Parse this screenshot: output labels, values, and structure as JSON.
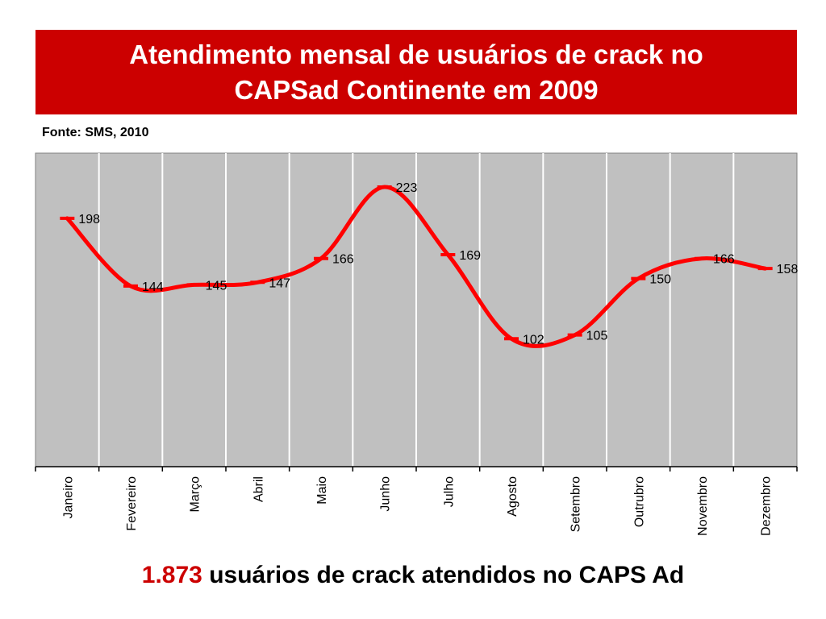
{
  "header": {
    "title": "Atendimento mensal de usuários de crack no CAPSad Continente em 2009",
    "source": "Fonte: SMS, 2010"
  },
  "footer": {
    "total": "1.873",
    "text": "usuários de crack atendidos no CAPS Ad"
  },
  "colors": {
    "banner": "#cc0000",
    "line": "#ff0000",
    "plot_bg": "#c0c0c0",
    "grid": "#ffffff"
  },
  "chart_data": {
    "type": "line",
    "title": "",
    "xlabel": "",
    "ylabel": "",
    "categories": [
      "Janeiro",
      "Fevereiro",
      "Março",
      "Abril",
      "Maio",
      "Junho",
      "Julho",
      "Agosto",
      "Setembro",
      "Outrubro",
      "Novembro",
      "Dezembro"
    ],
    "series": [
      {
        "values": [
          198,
          144,
          145,
          147,
          166,
          223,
          169,
          102,
          105,
          150,
          166,
          158
        ]
      }
    ],
    "data_labels": [
      "198",
      "144",
      "145",
      "147",
      "166",
      "223",
      "169",
      "102",
      "105",
      "150",
      "166",
      "158"
    ],
    "ylim": [
      0,
      250
    ],
    "grid": "vertical",
    "smooth": true
  }
}
